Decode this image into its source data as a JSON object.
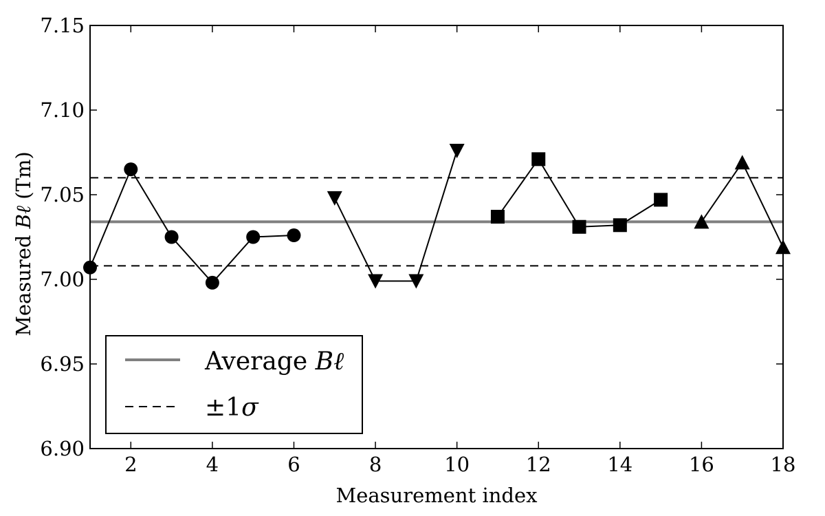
{
  "chart_data": {
    "type": "line",
    "xlabel": "Measurement index",
    "ylabel": {
      "prefix": "Measured ",
      "symbol": "Bℓ",
      "suffix": " (Tm)"
    },
    "xlim": [
      1,
      18
    ],
    "ylim": [
      6.9,
      7.15
    ],
    "x_ticks": [
      2,
      4,
      6,
      8,
      10,
      12,
      14,
      16,
      18
    ],
    "y_ticks": [
      "6.90",
      "6.95",
      "7.00",
      "7.05",
      "7.10",
      "7.15"
    ],
    "grid": false,
    "legend_position": "lower-left",
    "series": [
      {
        "marker": "circle",
        "points": [
          [
            1,
            7.007
          ],
          [
            2,
            7.065
          ],
          [
            3,
            7.025
          ],
          [
            4,
            6.998
          ],
          [
            5,
            7.025
          ],
          [
            6,
            7.026
          ]
        ]
      },
      {
        "marker": "triangle-down",
        "points": [
          [
            7,
            7.048
          ],
          [
            8,
            6.999
          ],
          [
            9,
            6.999
          ],
          [
            10,
            7.076
          ]
        ]
      },
      {
        "marker": "square",
        "points": [
          [
            11,
            7.037
          ],
          [
            12,
            7.071
          ],
          [
            13,
            7.031
          ],
          [
            14,
            7.032
          ],
          [
            15,
            7.047
          ]
        ]
      },
      {
        "marker": "triangle-up",
        "points": [
          [
            16,
            7.034
          ],
          [
            17,
            7.069
          ],
          [
            18,
            7.019
          ]
        ]
      }
    ],
    "reference_lines": {
      "average": {
        "value": 7.034,
        "color": "#808080"
      },
      "sigma_upper": 7.06,
      "sigma_lower": 7.008
    },
    "legend": [
      {
        "label_text": "Average ",
        "label_symbol": "Bℓ",
        "style": "solid-gray"
      },
      {
        "label_text": "±1",
        "label_symbol": "σ",
        "style": "dashed-black"
      }
    ]
  }
}
